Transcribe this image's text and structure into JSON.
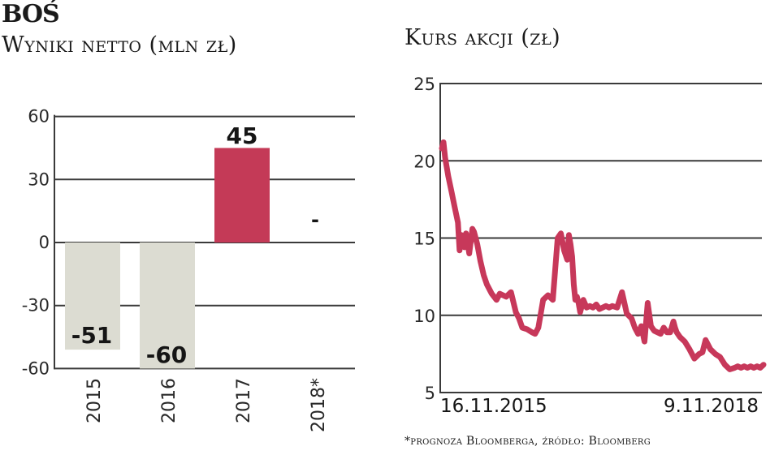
{
  "header": {
    "bank": "BOŚ",
    "left_title": "Wyniki netto (mln zł)",
    "right_title": "Kurs akcji (zł)",
    "footnote": "*prognoza Bloomberga, źródło: Bloomberg"
  },
  "colors": {
    "highlight_bar": "#c43a57",
    "negative_bar": "#dcdcd2",
    "line": "#c7385a",
    "grid": "#3a3a3a"
  },
  "chart_data": [
    {
      "type": "bar",
      "title": "Wyniki netto (mln zł)",
      "categories": [
        "2015",
        "2016",
        "2017",
        "2018*"
      ],
      "values": [
        -51,
        -60,
        45,
        null
      ],
      "data_labels": [
        "-51",
        "-60",
        "45",
        "-"
      ],
      "xlabel": "",
      "ylabel": "mln zł",
      "ylim": [
        -60,
        60
      ],
      "yticks": [
        60,
        30,
        0,
        -30,
        -60
      ],
      "ytick_labels": [
        "60",
        "30",
        "0",
        "-30",
        "-60"
      ],
      "grid": true,
      "legend": null,
      "note": "2018* = prognoza Bloomberga (no value shown)"
    },
    {
      "type": "line",
      "title": "Kurs akcji (zł)",
      "x_start_label": "16.11.2015",
      "x_end_label": "9.11.2018",
      "ylabel": "zł",
      "ylim": [
        5,
        25
      ],
      "yticks": [
        25,
        20,
        15,
        10,
        5
      ],
      "ytick_labels": [
        "25",
        "20",
        "15",
        "10",
        "5"
      ],
      "grid": true,
      "series": [
        {
          "name": "Kurs akcji BOŚ",
          "x_frac": [
            0.0,
            0.005,
            0.01,
            0.02,
            0.03,
            0.04,
            0.05,
            0.055,
            0.06,
            0.07,
            0.075,
            0.085,
            0.095,
            0.1,
            0.11,
            0.12,
            0.13,
            0.14,
            0.155,
            0.17,
            0.18,
            0.2,
            0.215,
            0.23,
            0.24,
            0.25,
            0.265,
            0.28,
            0.29,
            0.3,
            0.315,
            0.33,
            0.345,
            0.36,
            0.37,
            0.38,
            0.39,
            0.395,
            0.4,
            0.405,
            0.41,
            0.415,
            0.42,
            0.425,
            0.43,
            0.44,
            0.45,
            0.46,
            0.47,
            0.48,
            0.49,
            0.5,
            0.51,
            0.52,
            0.53,
            0.545,
            0.56,
            0.575,
            0.59,
            0.6,
            0.61,
            0.62,
            0.63,
            0.64,
            0.65,
            0.66,
            0.67,
            0.68,
            0.69,
            0.7,
            0.71,
            0.72,
            0.725,
            0.73,
            0.74,
            0.755,
            0.77,
            0.785,
            0.8,
            0.81,
            0.82,
            0.835,
            0.85,
            0.865,
            0.88,
            0.895,
            0.91,
            0.92,
            0.93,
            0.94,
            0.95,
            0.96,
            0.97,
            0.98,
            0.99,
            1.0
          ],
          "values": [
            20.8,
            21.2,
            20.2,
            19.0,
            18.0,
            17.0,
            16.0,
            14.2,
            15.2,
            14.4,
            15.3,
            14.0,
            15.6,
            15.4,
            14.6,
            13.5,
            12.6,
            12.0,
            11.4,
            11.0,
            11.4,
            11.2,
            11.5,
            10.2,
            9.8,
            9.2,
            9.1,
            8.9,
            8.8,
            9.2,
            11.0,
            11.3,
            11.0,
            15.0,
            15.3,
            14.2,
            13.6,
            15.2,
            14.6,
            13.8,
            12.0,
            11.0,
            11.2,
            10.8,
            10.2,
            11.0,
            10.5,
            10.6,
            10.5,
            10.7,
            10.4,
            10.5,
            10.6,
            10.5,
            10.6,
            10.5,
            11.5,
            10.1,
            9.8,
            9.2,
            8.8,
            9.3,
            8.3,
            10.8,
            9.3,
            9.0,
            8.9,
            8.8,
            9.2,
            8.9,
            8.9,
            9.6,
            9.2,
            8.9,
            8.6,
            8.3,
            7.8,
            7.2,
            7.5,
            7.6,
            8.4,
            7.8,
            7.5,
            7.3,
            6.8,
            6.5,
            6.6,
            6.7,
            6.6,
            6.7,
            6.6,
            6.7,
            6.6,
            6.7,
            6.6,
            6.8
          ]
        }
      ]
    }
  ]
}
